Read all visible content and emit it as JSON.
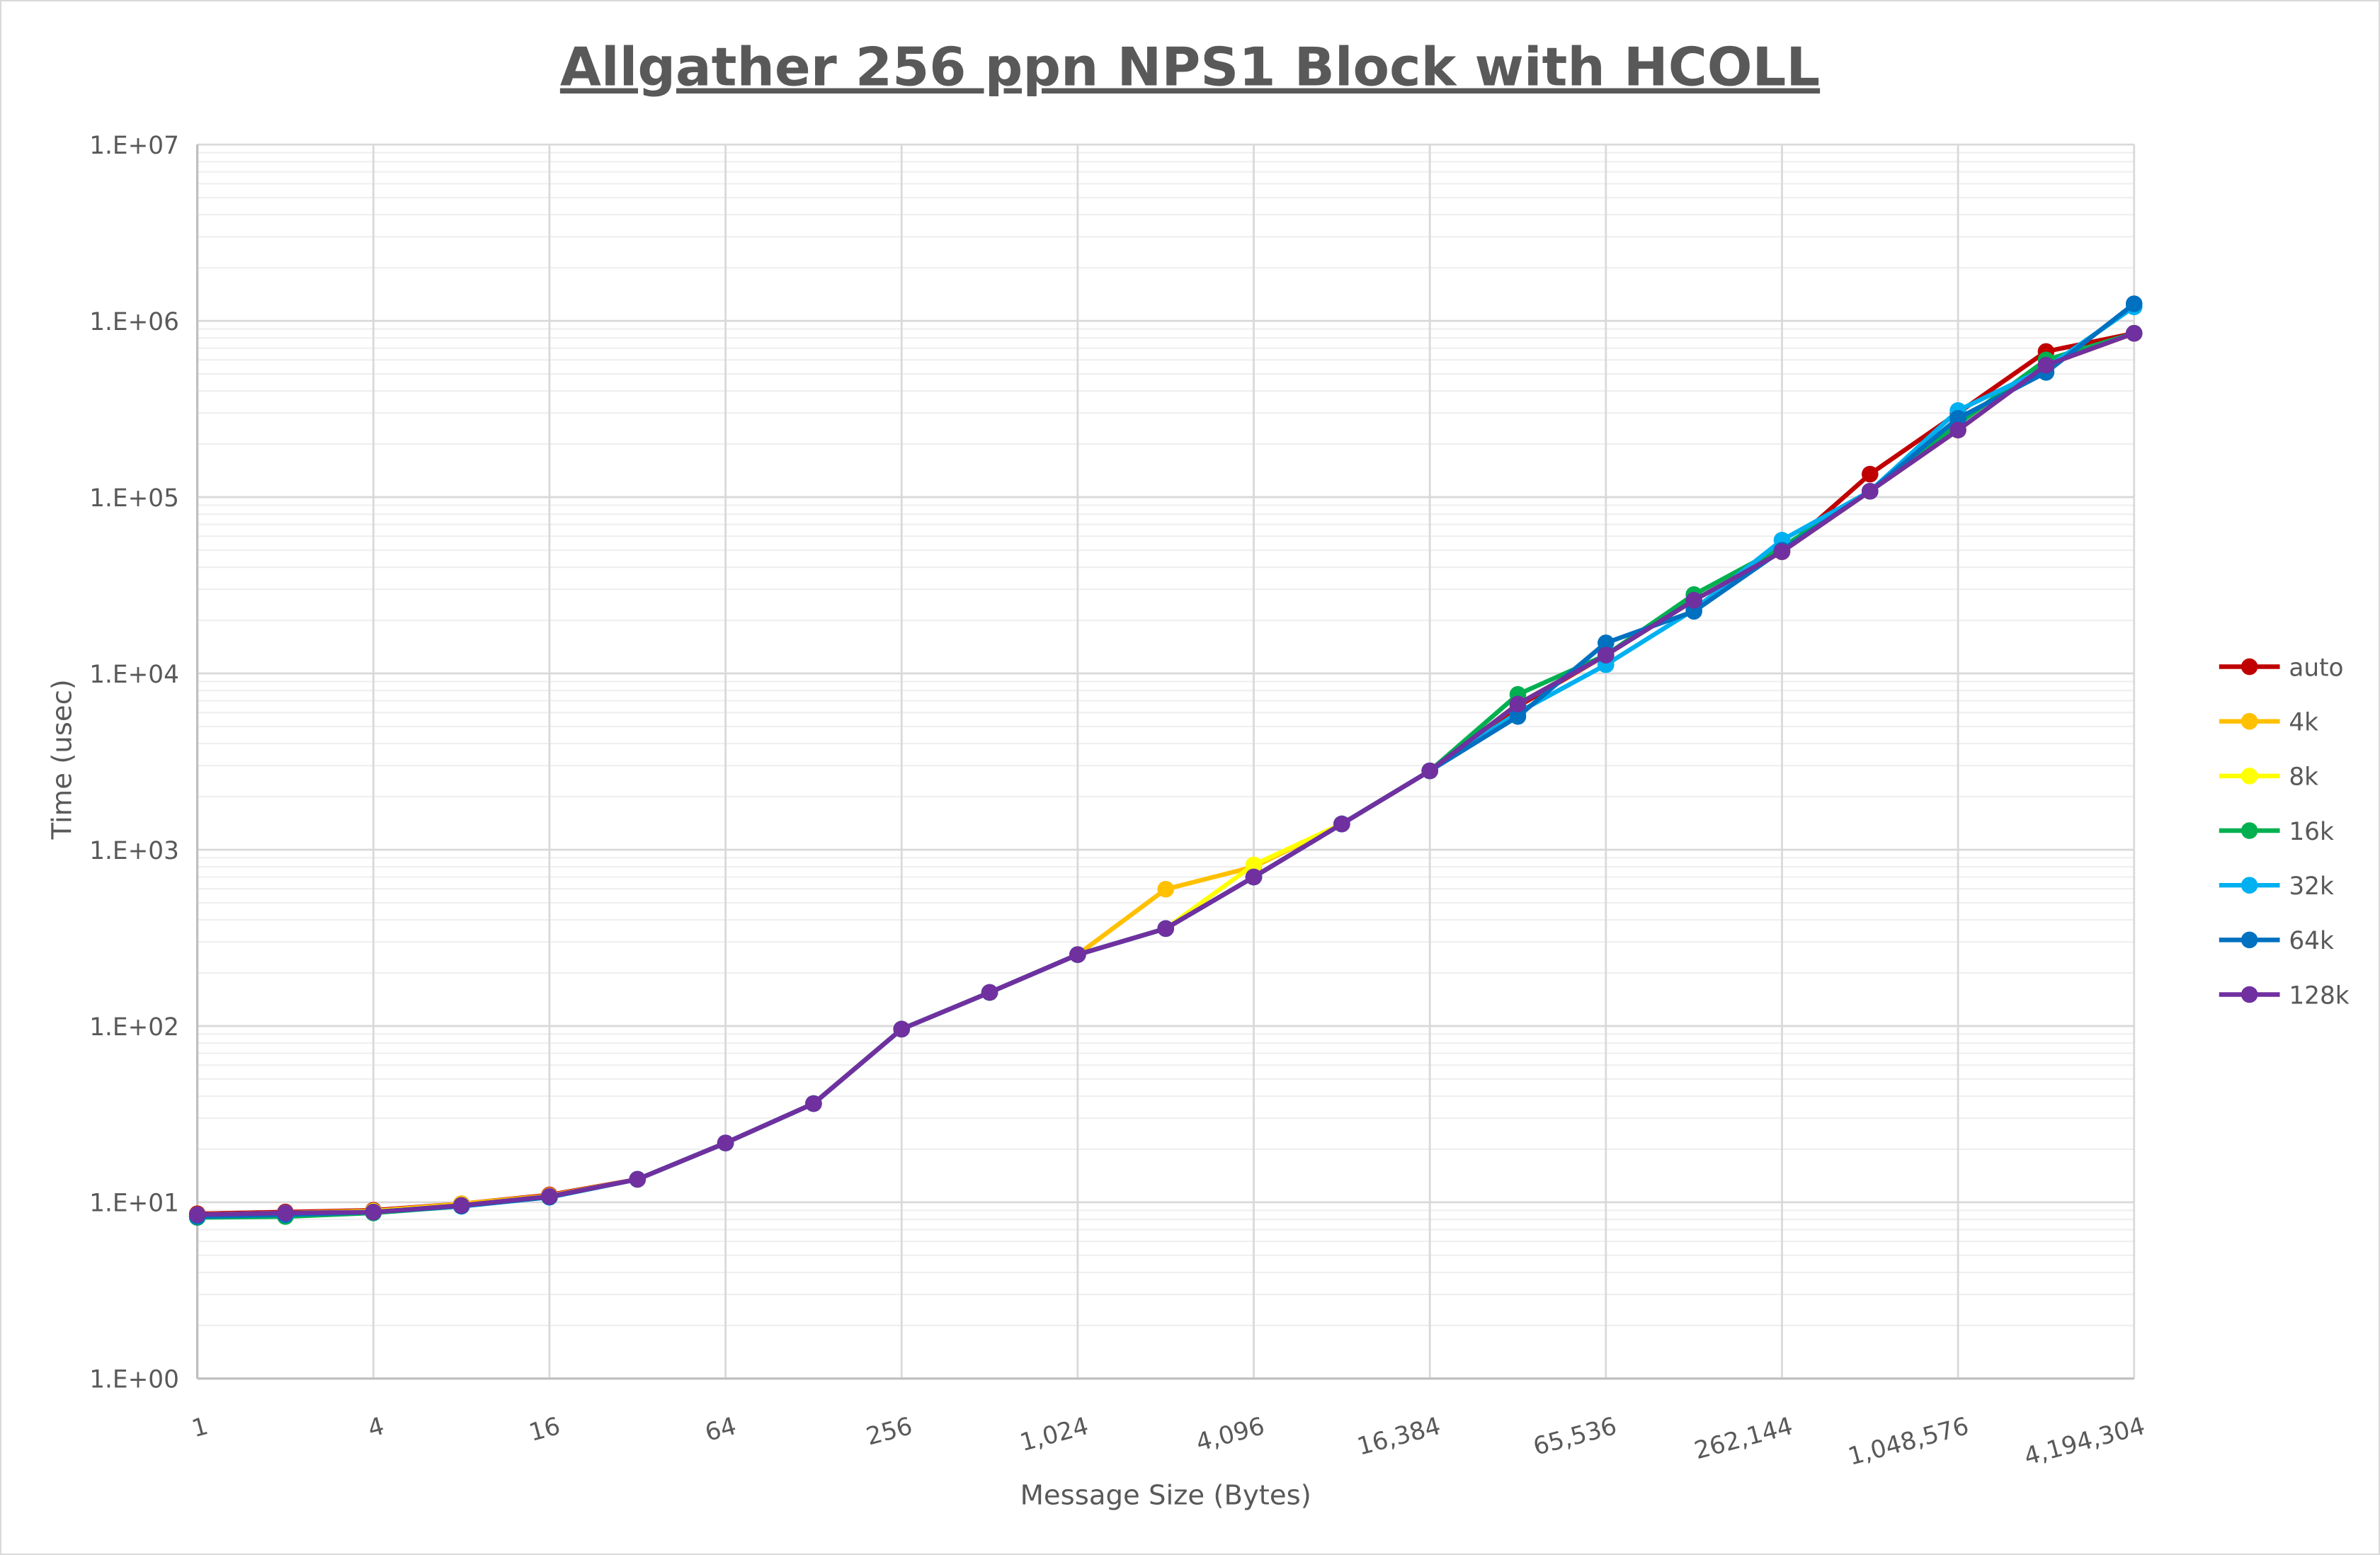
{
  "chart_data": {
    "type": "line",
    "title": "Allgather 256 ppn NPS1 Block with HCOLL",
    "xlabel": "Message Size (Bytes)",
    "ylabel": "Time (usec)",
    "x_scale": "log2",
    "y_scale": "log10",
    "ylim": [
      1,
      10000000
    ],
    "grid": true,
    "legend_position": "right",
    "x": [
      1,
      2,
      4,
      8,
      16,
      32,
      64,
      128,
      256,
      512,
      1024,
      2048,
      4096,
      8192,
      16384,
      32768,
      65536,
      131072,
      262144,
      524288,
      1048576,
      2097152,
      4194304
    ],
    "x_tick_labels": [
      "1",
      "4",
      "16",
      "64",
      "256",
      "1,024",
      "4,096",
      "16,384",
      "65,536",
      "262,144",
      "1,048,576",
      "4,194,304"
    ],
    "x_tick_values": [
      1,
      4,
      16,
      64,
      256,
      1024,
      4096,
      16384,
      65536,
      262144,
      1048576,
      4194304
    ],
    "y_tick_labels": [
      "1.E+00",
      "1.E+01",
      "1.E+02",
      "1.E+03",
      "1.E+04",
      "1.E+05",
      "1.E+06",
      "1.E+07"
    ],
    "y_tick_values": [
      1,
      10,
      100,
      1000,
      10000,
      100000,
      1000000,
      10000000
    ],
    "series": [
      {
        "name": "auto",
        "color": "#C00000",
        "values": [
          8.6,
          8.8,
          9.0,
          9.8,
          11.0,
          13.5,
          21.7,
          36.3,
          96,
          155,
          254,
          357,
          700,
          1400,
          2800,
          6500,
          12700,
          26000,
          49000,
          135000,
          300000,
          670000,
          850000
        ]
      },
      {
        "name": "4k",
        "color": "#FFC000",
        "values": [
          8.5,
          8.7,
          8.9,
          9.8,
          10.9,
          13.5,
          21.7,
          36.3,
          96,
          155,
          254,
          597,
          800,
          1400,
          2800,
          6700,
          12700,
          26000,
          49000,
          108000,
          240000,
          560000,
          850000
        ]
      },
      {
        "name": "8k",
        "color": "#FFFF00",
        "values": [
          8.5,
          8.7,
          8.9,
          9.6,
          10.8,
          13.5,
          21.7,
          36.3,
          96,
          155,
          254,
          357,
          820,
          1400,
          2800,
          6700,
          12700,
          26000,
          49000,
          108000,
          240000,
          560000,
          850000
        ]
      },
      {
        "name": "16k",
        "color": "#00B050",
        "values": [
          8.2,
          8.3,
          8.7,
          9.5,
          10.7,
          13.5,
          21.7,
          36.3,
          96,
          155,
          254,
          357,
          700,
          1400,
          2800,
          7600,
          12700,
          28000,
          52000,
          108000,
          260000,
          600000,
          850000
        ]
      },
      {
        "name": "32k",
        "color": "#00B0F0",
        "values": [
          8.3,
          8.5,
          8.8,
          9.5,
          10.7,
          13.5,
          21.7,
          36.3,
          96,
          155,
          254,
          357,
          700,
          1400,
          2800,
          6000,
          11200,
          23000,
          57000,
          108000,
          310000,
          540000,
          1200000
        ]
      },
      {
        "name": "64k",
        "color": "#0070C0",
        "values": [
          8.3,
          8.5,
          8.8,
          9.5,
          10.7,
          13.5,
          21.7,
          36.3,
          96,
          155,
          254,
          357,
          700,
          1400,
          2800,
          5700,
          14900,
          22500,
          50000,
          108000,
          280000,
          510000,
          1250000
        ]
      },
      {
        "name": "128k",
        "color": "#7030A0",
        "values": [
          8.5,
          8.7,
          8.8,
          9.6,
          10.8,
          13.5,
          21.7,
          36.3,
          96,
          155,
          254,
          357,
          700,
          1400,
          2800,
          6700,
          12700,
          26000,
          49000,
          108000,
          240000,
          560000,
          850000
        ]
      }
    ]
  }
}
